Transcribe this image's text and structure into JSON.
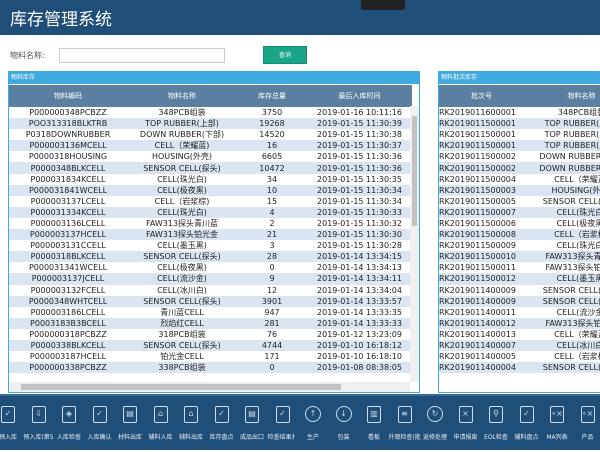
{
  "header": {
    "title": "库存管理系统"
  },
  "search": {
    "label": "物料名称:",
    "value": "",
    "button": "查询"
  },
  "left": {
    "title": "物料库存",
    "columns": [
      "物料编码",
      "物料名称",
      "库存总量",
      "最后入库时间"
    ],
    "rows": [
      [
        "P000000348PCBZZ",
        "348PCB组装",
        "3750",
        "2019-01-16 10:11:16"
      ],
      [
        "POO313318BLKTRB",
        "TOP RUBBER(上部)",
        "19268",
        "2019-01-15 11:30:39"
      ],
      [
        "P0318DOWNRUBBER",
        "DOWN RUBBER(下部)",
        "14520",
        "2019-01-15 11:30:38"
      ],
      [
        "P000003136MCELL",
        "CELL（荣耀蓝)",
        "16",
        "2019-01-15 11:30:37"
      ],
      [
        "P0000318HOUSING",
        "HOUSING(外壳)",
        "6605",
        "2019-01-15 11:30:36"
      ],
      [
        "P0000348BLKCELL",
        "SENSOR CELL(探头)",
        "10472",
        "2019-01-15 11:30:36"
      ],
      [
        "P000031834KCELL",
        "CELL(珠光白)",
        "34",
        "2019-01-15 11:30:35"
      ],
      [
        "P000031841WCELL",
        "CELL(极夜黑)",
        "10",
        "2019-01-15 11:30:34"
      ],
      [
        "P000003137LCELL",
        "CELL（岩浆棕)",
        "15",
        "2019-01-15 11:30:34"
      ],
      [
        "P000031334KCELL",
        "CELL(珠光白)",
        "4",
        "2019-01-15 11:30:33"
      ],
      [
        "P000003136LCELL",
        "FAW313探头青川蓝",
        "2",
        "2019-01-15 11:30:32"
      ],
      [
        "P000003137HCELL",
        "FAW313探头铂光金",
        "21",
        "2019-01-15 11:30:30"
      ],
      [
        "P000003131CCELL",
        "CELL(墨玉黑)",
        "3",
        "2019-01-15 11:30:28"
      ],
      [
        "P0000318BLKCELL",
        "SENSOR CELL(探头)",
        "28",
        "2019-01-14 13:34:15"
      ],
      [
        "P000031341WCELL",
        "CELL(极夜黑)",
        "0",
        "2019-01-14 13:34:13"
      ],
      [
        "P000003137JCELL",
        "CELL(流沙金)",
        "9",
        "2019-01-14 13:34:11"
      ],
      [
        "P000003132FCELL",
        "CELL(冰川白)",
        "12",
        "2019-01-14 13:34:04"
      ],
      [
        "P0000348WHTCELL",
        "SENSOR CELL(探头)",
        "3901",
        "2019-01-14 13:33:57"
      ],
      [
        "P000003186LCELL",
        "青川蓝CELL",
        "947",
        "2019-01-14 13:33:35"
      ],
      [
        "P0003183B3BCELL",
        "烈焰红CELL",
        "281",
        "2019-01-14 13:33:33"
      ],
      [
        "P000000318PCBZZ",
        "318PCB组装",
        "76",
        "2019-01-12 13:23:09"
      ],
      [
        "P0000338BLKCELL",
        "SENSOR CELL(探头)",
        "4744",
        "2019-01-10 16:18:12"
      ],
      [
        "P000003187HCELL",
        "铂光金CELL",
        "171",
        "2019-01-10 16:18:10"
      ],
      [
        "P000000338PCBZZ",
        "338PCB组装",
        "0",
        "2019-01-08 08:38:05"
      ]
    ]
  },
  "right": {
    "title": "物料批次库存",
    "columns": [
      "批次号",
      "物料名称"
    ],
    "rows": [
      [
        "RK2019011600001",
        "348PCB组装"
      ],
      [
        "RK2019011500001",
        "TOP RUBBER(上部)"
      ],
      [
        "RK2019011500001",
        "TOP RUBBER(上部)"
      ],
      [
        "RK2019011500001",
        "TOP RUBBER(上部)"
      ],
      [
        "RK2019011500002",
        "DOWN RUBBER(下部)"
      ],
      [
        "RK2019011500002",
        "DOWN RUBBER(下部)"
      ],
      [
        "RK2019011500004",
        "CELL（荣耀蓝)"
      ],
      [
        "RK2019011500003",
        "HOUSING(外壳)"
      ],
      [
        "RK2019011500005",
        "SENSOR CELL(探头)"
      ],
      [
        "RK2019011500007",
        "CELL(珠光白)"
      ],
      [
        "RK2019011500006",
        "CELL(极夜黑)"
      ],
      [
        "RK2019011500008",
        "CELL（岩浆棕)"
      ],
      [
        "RK2019011500009",
        "CELL(珠光白)"
      ],
      [
        "RK2019011500010",
        "FAW313探头青川蓝"
      ],
      [
        "RK2019011500011",
        "FAW313探头铂光金"
      ],
      [
        "RK2019011500012",
        "CELL(墨玉黑)"
      ],
      [
        "RK2019011400009",
        "SENSOR CELL(探头)"
      ],
      [
        "RK2019011400009",
        "SENSOR CELL(探头)"
      ],
      [
        "RK2019011400011",
        "CELL(流沙金)"
      ],
      [
        "RK2019011400012",
        "FAW313探头铂光金"
      ],
      [
        "RK2019011400013",
        "CELL（荣耀蓝)"
      ],
      [
        "RK2019011400007",
        "CELL(冰川白)"
      ],
      [
        "RK2019011400005",
        "CELL（岩浆棕)"
      ],
      [
        "RK2019011400004",
        "SENSOR CELL(探头)"
      ]
    ]
  },
  "toolbar": [
    {
      "label": "预入库",
      "icon": "clipboard-icon"
    },
    {
      "label": "预入库(第5",
      "icon": "clipboard-download-icon"
    },
    {
      "label": "入库检查",
      "icon": "shield-icon"
    },
    {
      "label": "入库确认",
      "icon": "clipboard-check-icon"
    },
    {
      "label": "材料出库",
      "icon": "document-icon"
    },
    {
      "label": "辅料入库",
      "icon": "warehouse-icon"
    },
    {
      "label": "辅料出库",
      "icon": "warehouse-icon"
    },
    {
      "label": "库存盘点",
      "icon": "clipboard-check-icon"
    },
    {
      "label": "成品出口",
      "icon": "document-icon"
    },
    {
      "label": "检查结果扌",
      "icon": "clipboard-check-icon"
    },
    {
      "label": "生产",
      "icon": "arrow-up-icon"
    },
    {
      "label": "包装",
      "icon": "arrow-down-icon"
    },
    {
      "label": "看板",
      "icon": "barcode-icon"
    },
    {
      "label": "外观检查(批",
      "icon": "inspect-icon"
    },
    {
      "label": "返修处理",
      "icon": "refresh-icon"
    },
    {
      "label": "申请报废",
      "icon": "close-box-icon"
    },
    {
      "label": "EOL检查",
      "icon": "microscope-icon"
    },
    {
      "label": "辅料盘点",
      "icon": "clipboard-check-icon"
    },
    {
      "label": "MA列表",
      "icon": "grid-icon"
    },
    {
      "label": "产品",
      "icon": "grid-icon"
    }
  ]
}
